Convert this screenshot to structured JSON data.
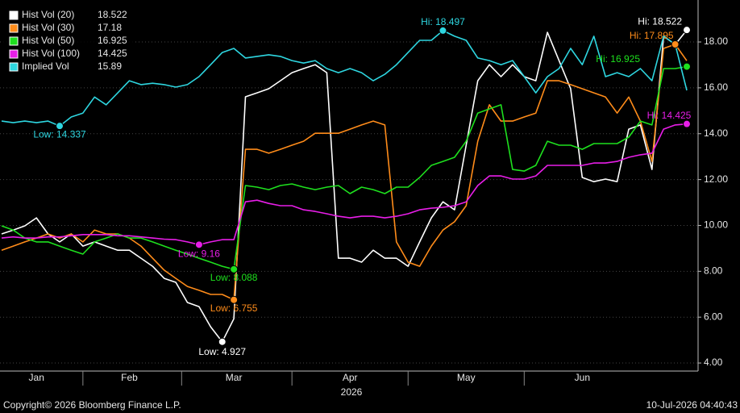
{
  "chart_data": {
    "type": "line",
    "categories": [
      null,
      null,
      null,
      "Jan",
      null,
      null,
      null,
      null,
      null,
      null,
      null,
      "Feb",
      null,
      null,
      null,
      null,
      null,
      null,
      null,
      null,
      "Mar",
      null,
      null,
      null,
      null,
      null,
      null,
      null,
      null,
      null,
      "Apr",
      null,
      null,
      null,
      null,
      null,
      null,
      null,
      null,
      null,
      "May",
      null,
      null,
      null,
      null,
      null,
      null,
      null,
      null,
      null,
      "Jun",
      null,
      null,
      null,
      null,
      null,
      null,
      null,
      null,
      null
    ],
    "x_sublabel": "2026",
    "ylim": [
      3.65,
      19.83
    ],
    "yticks": [
      {
        "value": 4,
        "label": "4.00"
      },
      {
        "value": 6,
        "label": "6.00"
      },
      {
        "value": 8,
        "label": "8.00"
      },
      {
        "value": 10,
        "label": "10.00"
      },
      {
        "value": 12,
        "label": "12.00"
      },
      {
        "value": 14,
        "label": "14.00"
      },
      {
        "value": 16,
        "label": "16.00"
      },
      {
        "value": 18,
        "label": "18.00"
      }
    ],
    "grid": true,
    "legend": "top-left",
    "series": [
      {
        "name": "Hist Vol (20)",
        "last": 18.522,
        "color": "#ffffff",
        "high": {
          "label": "Hi: 18.522",
          "value": 18.522
        },
        "low": {
          "label": "Low: 4.927",
          "value": 4.927
        },
        "values": [
          9.63,
          9.8,
          9.98,
          10.33,
          9.63,
          9.28,
          9.63,
          9.1,
          9.28,
          9.1,
          8.92,
          8.92,
          8.57,
          8.22,
          7.69,
          7.52,
          6.64,
          6.46,
          5.58,
          4.927,
          5.93,
          15.61,
          15.78,
          15.96,
          16.31,
          16.66,
          16.84,
          17.01,
          16.66,
          8.57,
          8.57,
          8.4,
          8.92,
          8.57,
          8.57,
          8.22,
          9.28,
          10.33,
          11.03,
          10.68,
          13.5,
          16.31,
          17.01,
          16.49,
          17.01,
          16.49,
          16.31,
          18.42,
          17.19,
          15.96,
          12.09,
          11.91,
          12.02,
          11.91,
          14.2,
          14.38,
          12.44,
          18.25,
          17.89,
          18.522
        ]
      },
      {
        "name": "Hist Vol (30)",
        "last": 17.18,
        "color": "#ff8c1a",
        "high": {
          "label": "Hi: 17.895",
          "value": 17.895
        },
        "low": {
          "label": "Low: 6.755",
          "value": 6.755
        },
        "values": [
          8.92,
          9.1,
          9.28,
          9.45,
          9.63,
          9.45,
          9.63,
          9.28,
          9.8,
          9.63,
          9.63,
          9.45,
          9.1,
          8.57,
          8.05,
          7.69,
          7.34,
          7.17,
          6.99,
          6.99,
          6.755,
          13.32,
          13.32,
          13.15,
          13.32,
          13.5,
          13.67,
          14.02,
          14.02,
          14.02,
          14.2,
          14.38,
          14.55,
          14.38,
          9.28,
          8.4,
          8.22,
          9.1,
          9.8,
          10.16,
          10.86,
          13.67,
          15.26,
          14.55,
          14.55,
          14.73,
          14.9,
          16.31,
          16.31,
          16.14,
          15.96,
          15.78,
          15.6,
          14.9,
          15.6,
          14.55,
          12.79,
          17.72,
          17.895,
          17.18
        ]
      },
      {
        "name": "Hist Vol (50)",
        "last": 16.925,
        "color": "#1ee01e",
        "high": {
          "label": "Hi: 16.925",
          "value": 16.925
        },
        "low": {
          "label": "Low: 8.088",
          "value": 8.088
        },
        "values": [
          9.98,
          9.8,
          9.45,
          9.28,
          9.28,
          9.1,
          8.92,
          8.75,
          9.28,
          9.45,
          9.63,
          9.45,
          9.45,
          9.28,
          9.1,
          8.92,
          8.75,
          8.57,
          8.4,
          8.22,
          8.088,
          11.74,
          11.67,
          11.56,
          11.74,
          11.81,
          11.67,
          11.56,
          11.67,
          11.74,
          11.39,
          11.67,
          11.56,
          11.39,
          11.67,
          11.67,
          12.09,
          12.62,
          12.79,
          12.97,
          13.67,
          14.9,
          15.08,
          15.26,
          12.44,
          12.37,
          12.62,
          13.67,
          13.5,
          13.5,
          13.32,
          13.57,
          13.57,
          13.57,
          13.85,
          14.55,
          14.38,
          16.84,
          16.84,
          16.925
        ]
      },
      {
        "name": "Hist Vol (100)",
        "last": 14.425,
        "color": "#e81ee8",
        "high": {
          "label": "Hi: 14.425",
          "value": 14.425
        },
        "low": {
          "label": "Low: 9.16",
          "value": 9.16
        },
        "values": [
          9.45,
          9.5,
          9.45,
          9.45,
          9.5,
          9.5,
          9.55,
          9.6,
          9.6,
          9.6,
          9.55,
          9.55,
          9.5,
          9.45,
          9.4,
          9.38,
          9.28,
          9.16,
          9.28,
          9.38,
          9.38,
          11.03,
          11.1,
          10.96,
          10.86,
          10.86,
          10.68,
          10.61,
          10.51,
          10.4,
          10.33,
          10.4,
          10.4,
          10.33,
          10.4,
          10.51,
          10.68,
          10.75,
          10.79,
          10.86,
          11.03,
          11.74,
          12.16,
          12.16,
          12.02,
          12.02,
          12.16,
          12.62,
          12.62,
          12.62,
          12.62,
          12.72,
          12.72,
          12.79,
          12.97,
          13.08,
          13.15,
          14.2,
          14.38,
          14.425
        ]
      },
      {
        "name": "Implied Vol",
        "last": 15.89,
        "color": "#2ed6e0",
        "high": {
          "label": "Hi: 18.497",
          "value": 18.497
        },
        "low": {
          "label": "Low: 14.337",
          "value": 14.337
        },
        "values": [
          14.55,
          14.48,
          14.55,
          14.48,
          14.55,
          14.337,
          14.73,
          14.9,
          15.6,
          15.26,
          15.78,
          16.31,
          16.14,
          16.2,
          16.14,
          16.03,
          16.14,
          16.49,
          17.01,
          17.54,
          17.72,
          17.3,
          17.37,
          17.44,
          17.37,
          17.19,
          17.08,
          17.19,
          16.84,
          16.66,
          16.84,
          16.66,
          16.31,
          16.59,
          17.01,
          17.54,
          18.07,
          18.07,
          18.497,
          18.25,
          18.07,
          17.3,
          17.19,
          17.01,
          17.19,
          16.49,
          15.78,
          16.49,
          16.84,
          17.72,
          17.01,
          18.25,
          16.49,
          16.66,
          16.49,
          16.84,
          16.31,
          18.25,
          17.9,
          15.89
        ]
      }
    ],
    "copyright": "Copyright© 2026 Bloomberg Finance L.P.",
    "timestamp": "10-Jul-2026 04:40:43"
  }
}
